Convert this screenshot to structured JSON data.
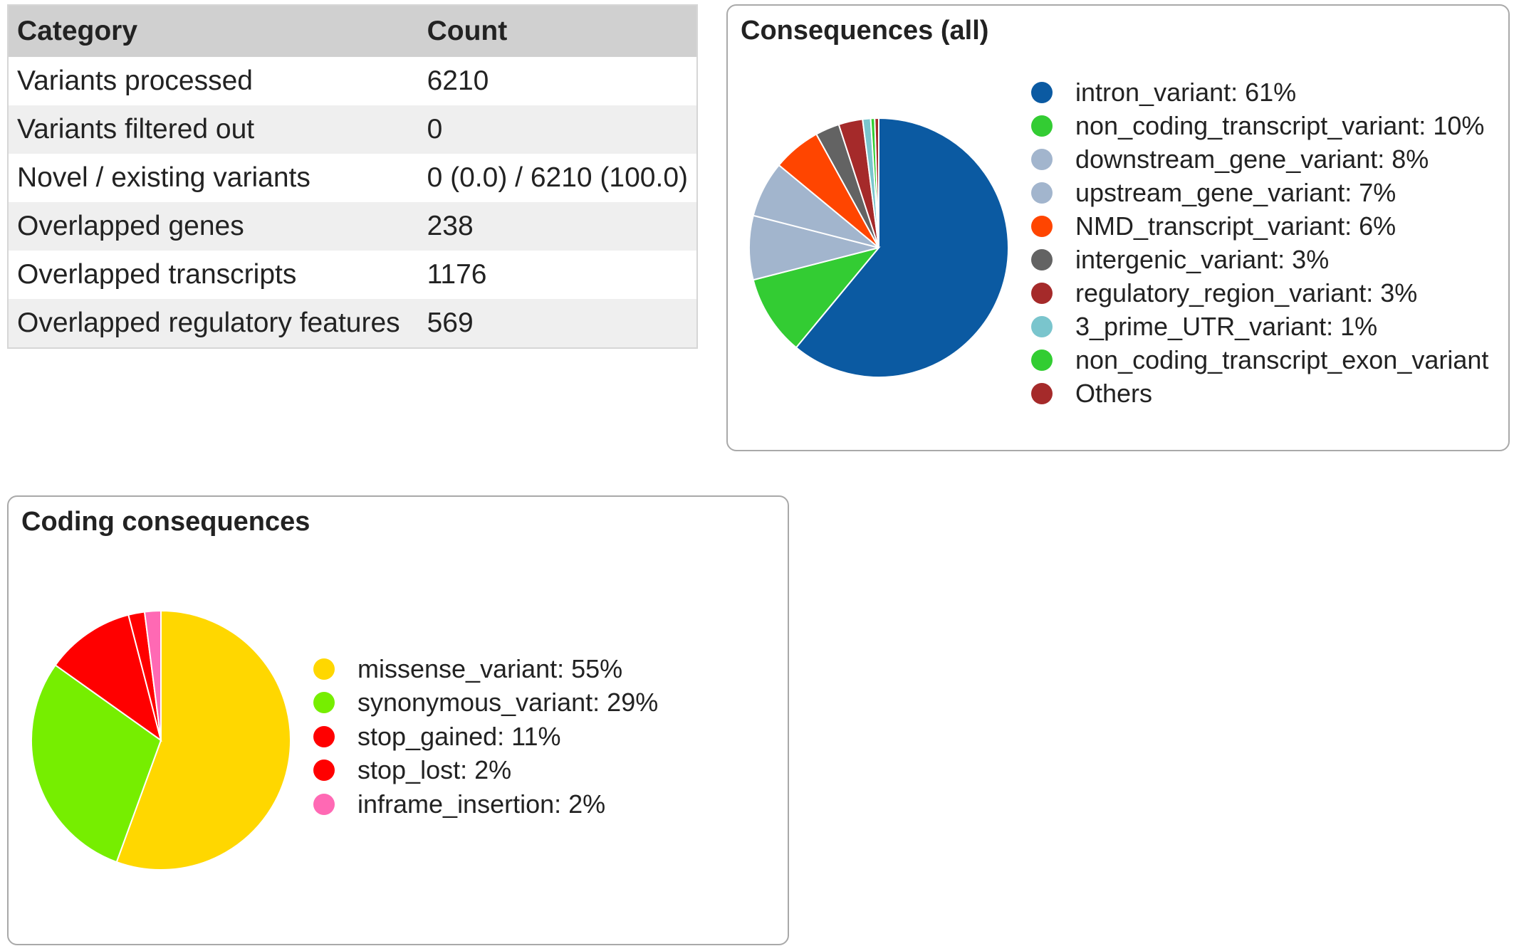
{
  "summary_table": {
    "headers": [
      "Category",
      "Count"
    ],
    "rows": [
      [
        "Variants processed",
        "6210"
      ],
      [
        "Variants filtered out",
        "0"
      ],
      [
        "Novel / existing variants",
        "0 (0.0) / 6210 (100.0)"
      ],
      [
        "Overlapped genes",
        "238"
      ],
      [
        "Overlapped transcripts",
        "1176"
      ],
      [
        "Overlapped regulatory features",
        "569"
      ]
    ]
  },
  "chart_data": [
    {
      "type": "pie",
      "title": "Consequences (all)",
      "slices": [
        {
          "label": "intron_variant: 61%",
          "value": 61,
          "color": "#0b5aa2"
        },
        {
          "label": "non_coding_transcript_variant: 10%",
          "value": 10,
          "color": "#33cc33"
        },
        {
          "label": "downstream_gene_variant: 8%",
          "value": 8,
          "color": "#a2b5cd"
        },
        {
          "label": "upstream_gene_variant: 7%",
          "value": 7,
          "color": "#a2b5cd"
        },
        {
          "label": "NMD_transcript_variant: 6%",
          "value": 6,
          "color": "#ff4500"
        },
        {
          "label": "intergenic_variant: 3%",
          "value": 3,
          "color": "#636363"
        },
        {
          "label": "regulatory_region_variant: 3%",
          "value": 3,
          "color": "#a52a2a"
        },
        {
          "label": "3_prime_UTR_variant: 1%",
          "value": 1,
          "color": "#7ac5cd"
        },
        {
          "label": "non_coding_transcript_exon_variant",
          "value": 0.5,
          "color": "#32cd32"
        },
        {
          "label": "Others",
          "value": 0.5,
          "color": "#a52a2a"
        }
      ]
    },
    {
      "type": "pie",
      "title": "Coding consequences",
      "slices": [
        {
          "label": "missense_variant: 55%",
          "value": 55,
          "color": "#ffd700"
        },
        {
          "label": "synonymous_variant: 29%",
          "value": 29,
          "color": "#76ee00"
        },
        {
          "label": "stop_gained: 11%",
          "value": 11,
          "color": "#ff0000"
        },
        {
          "label": "stop_lost: 2%",
          "value": 2,
          "color": "#ff0000"
        },
        {
          "label": "inframe_insertion: 2%",
          "value": 2,
          "color": "#ff69b4"
        }
      ]
    }
  ]
}
